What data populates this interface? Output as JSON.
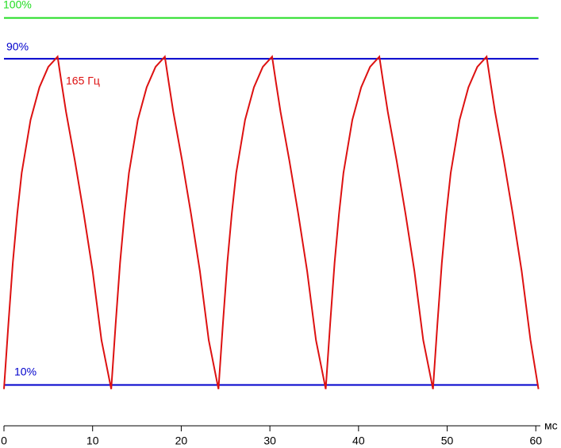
{
  "chart_data": {
    "type": "line",
    "x_label": "мс",
    "xlim": [
      0,
      60.3
    ],
    "ylim": [
      0,
      104.4
    ],
    "xticks": [
      0,
      10,
      20,
      30,
      40,
      50,
      60
    ],
    "series": [
      {
        "name": "100%",
        "color": "#22dd22",
        "x": [
          0,
          60.3
        ],
        "values": [
          100,
          100
        ]
      },
      {
        "name": "90%",
        "color": "#0000cc",
        "x": [
          0,
          60.3
        ],
        "values": [
          90,
          90
        ]
      },
      {
        "name": "10%",
        "color": "#0000cc",
        "x": [
          0,
          60.3
        ],
        "values": [
          10,
          10
        ]
      },
      {
        "name": "165 Гц",
        "color": "#dd1111",
        "x": [
          0,
          0.5,
          1,
          1.5,
          2,
          3,
          4,
          5,
          6.05,
          6.5,
          7,
          8,
          9,
          10,
          11,
          12.1,
          12.6,
          13.1,
          13.6,
          14.1,
          15.1,
          16.1,
          17.1,
          18.15,
          18.6,
          19.1,
          20.1,
          21.1,
          22.1,
          23.1,
          24.2,
          24.7,
          25.2,
          25.7,
          26.2,
          27.2,
          28.2,
          29.2,
          30.25,
          30.7,
          31.2,
          32.2,
          33.2,
          34.2,
          35.2,
          36.3,
          36.8,
          37.3,
          37.8,
          38.3,
          39.3,
          40.3,
          41.3,
          42.35,
          42.8,
          43.3,
          44.3,
          45.3,
          46.3,
          47.3,
          48.4,
          48.9,
          49.4,
          49.9,
          50.4,
          51.4,
          52.4,
          53.4,
          54.45,
          54.9,
          55.4,
          56.4,
          57.4,
          58.4,
          59.4,
          60.3
        ],
        "values": [
          9,
          25,
          40,
          52,
          62,
          75,
          83,
          88,
          90.5,
          84,
          77,
          65,
          52,
          38,
          21,
          9,
          25,
          40,
          52,
          62,
          75,
          83,
          88,
          90.5,
          84,
          77,
          65,
          52,
          38,
          21,
          9,
          25,
          40,
          52,
          62,
          75,
          83,
          88,
          90.5,
          84,
          77,
          65,
          52,
          38,
          21,
          9,
          25,
          40,
          52,
          62,
          75,
          83,
          88,
          90.5,
          84,
          77,
          65,
          52,
          38,
          21,
          9,
          25,
          40,
          52,
          62,
          75,
          83,
          88,
          90.5,
          84,
          77,
          65,
          52,
          38,
          21,
          9
        ]
      }
    ]
  }
}
